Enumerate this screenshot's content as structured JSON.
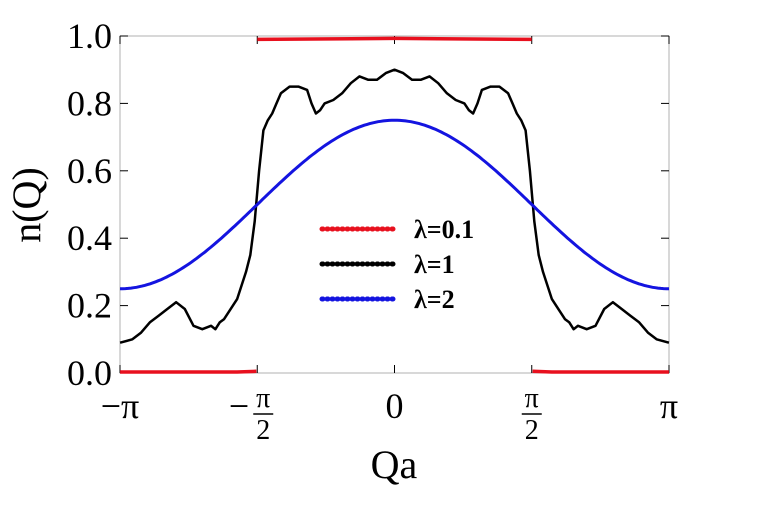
{
  "chart_data": {
    "type": "line",
    "title": "",
    "xlabel": "Qa",
    "ylabel": "n(Q)",
    "xlim": [
      -3.14159,
      3.14159
    ],
    "ylim": [
      0,
      1
    ],
    "x_ticks": [
      {
        "value": -3.14159,
        "label": "−π"
      },
      {
        "value": -1.5708,
        "label": "−π/2",
        "sign": "−",
        "num": "π",
        "den": "2"
      },
      {
        "value": 0,
        "label": "0"
      },
      {
        "value": 1.5708,
        "label": "π/2",
        "num": "π",
        "den": "2"
      },
      {
        "value": 3.14159,
        "label": "π"
      }
    ],
    "y_ticks": [
      {
        "value": 0.0,
        "label": "0.0"
      },
      {
        "value": 0.2,
        "label": "0.2"
      },
      {
        "value": 0.4,
        "label": "0.4"
      },
      {
        "value": 0.6,
        "label": "0.6"
      },
      {
        "value": 0.8,
        "label": "0.8"
      },
      {
        "value": 1.0,
        "label": "1.0"
      }
    ],
    "grid": false,
    "legend_placement": "center",
    "series": [
      {
        "name": "λ=0.1",
        "color": "#e8101e",
        "segments": [
          {
            "x": [
              -3.14,
              -1.8,
              -1.58
            ],
            "y": [
              0.003,
              0.003,
              0.005
            ]
          },
          {
            "x": [
              -1.57,
              -0.5,
              0,
              0.5,
              1.57
            ],
            "y": [
              0.99,
              0.992,
              0.993,
              0.992,
              0.99
            ]
          },
          {
            "x": [
              1.58,
              1.8,
              3.14
            ],
            "y": [
              0.005,
              0.003,
              0.003
            ]
          }
        ]
      },
      {
        "name": "λ=1",
        "color": "#000000",
        "x": [
          -3.14,
          -3.0,
          -2.9,
          -2.8,
          -2.7,
          -2.6,
          -2.5,
          -2.4,
          -2.3,
          -2.2,
          -2.1,
          -2.05,
          -2.0,
          -1.95,
          -1.9,
          -1.85,
          -1.8,
          -1.75,
          -1.7,
          -1.65,
          -1.6,
          -1.55,
          -1.5,
          -1.45,
          -1.4,
          -1.35,
          -1.3,
          -1.2,
          -1.1,
          -1.0,
          -0.95,
          -0.9,
          -0.85,
          -0.8,
          -0.7,
          -0.6,
          -0.5,
          -0.4,
          -0.3,
          -0.2,
          -0.1,
          0,
          0.1,
          0.2,
          0.3,
          0.4,
          0.5,
          0.6,
          0.7,
          0.8,
          0.85,
          0.9,
          0.95,
          1.0,
          1.1,
          1.2,
          1.3,
          1.35,
          1.4,
          1.45,
          1.5,
          1.55,
          1.6,
          1.65,
          1.7,
          1.75,
          1.8,
          1.85,
          1.9,
          1.95,
          2.0,
          2.05,
          2.1,
          2.2,
          2.3,
          2.4,
          2.5,
          2.6,
          2.7,
          2.8,
          2.9,
          3.0,
          3.14
        ],
        "y": [
          0.09,
          0.1,
          0.12,
          0.15,
          0.17,
          0.19,
          0.21,
          0.19,
          0.14,
          0.13,
          0.14,
          0.13,
          0.15,
          0.16,
          0.18,
          0.2,
          0.22,
          0.26,
          0.3,
          0.35,
          0.45,
          0.6,
          0.72,
          0.75,
          0.77,
          0.8,
          0.83,
          0.85,
          0.85,
          0.84,
          0.8,
          0.77,
          0.78,
          0.8,
          0.81,
          0.83,
          0.86,
          0.88,
          0.87,
          0.87,
          0.89,
          0.9,
          0.89,
          0.87,
          0.87,
          0.88,
          0.86,
          0.83,
          0.81,
          0.8,
          0.78,
          0.77,
          0.8,
          0.84,
          0.85,
          0.85,
          0.83,
          0.8,
          0.77,
          0.75,
          0.72,
          0.6,
          0.45,
          0.35,
          0.3,
          0.26,
          0.22,
          0.2,
          0.18,
          0.16,
          0.15,
          0.13,
          0.14,
          0.13,
          0.14,
          0.19,
          0.21,
          0.19,
          0.17,
          0.15,
          0.12,
          0.1,
          0.09
        ]
      },
      {
        "name": "λ=2",
        "color": "#1414e0",
        "formula": "0.5 + 0.25*cos(x)"
      }
    ]
  }
}
